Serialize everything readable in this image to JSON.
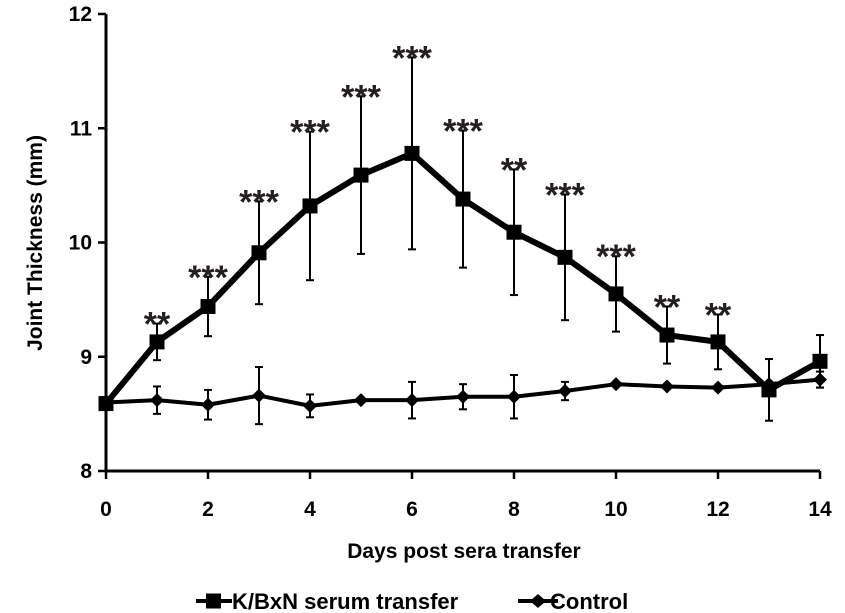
{
  "chart_data": {
    "type": "line",
    "xlabel": "Days post sera transfer",
    "ylabel": "Joint Thickness (mm)",
    "xlim": [
      0,
      14
    ],
    "ylim": [
      8,
      12
    ],
    "xticks": [
      "0",
      "2",
      "4",
      "6",
      "8",
      "10",
      "12",
      "14"
    ],
    "yticks": [
      "8",
      "9",
      "10",
      "11",
      "12"
    ],
    "grid": false,
    "legend_position": "bottom",
    "series": [
      {
        "name": "K/BxN serum transfer",
        "marker": "square",
        "color": "#000000",
        "x": [
          0,
          1,
          2,
          3,
          4,
          5,
          6,
          7,
          8,
          9,
          10,
          11,
          12,
          13,
          14
        ],
        "y": [
          8.59,
          9.13,
          9.44,
          9.91,
          10.32,
          10.59,
          10.78,
          10.38,
          10.09,
          9.87,
          9.55,
          9.19,
          9.13,
          8.71,
          8.96
        ],
        "err": [
          0,
          0.16,
          0.26,
          0.45,
          0.65,
          0.69,
          0.84,
          0.6,
          0.55,
          0.55,
          0.33,
          0.25,
          0.24,
          0.27,
          0.23
        ]
      },
      {
        "name": "Control",
        "marker": "diamond",
        "color": "#000000",
        "x": [
          0,
          1,
          2,
          3,
          4,
          5,
          6,
          7,
          8,
          9,
          10,
          11,
          12,
          13,
          14
        ],
        "y": [
          8.6,
          8.62,
          8.58,
          8.66,
          8.57,
          8.62,
          8.62,
          8.65,
          8.65,
          8.7,
          8.76,
          8.74,
          8.73,
          8.76,
          8.8
        ],
        "err": [
          0,
          0.12,
          0.13,
          0.25,
          0.1,
          0,
          0.16,
          0.11,
          0.19,
          0.08,
          0,
          0,
          0,
          0,
          0.07
        ]
      }
    ],
    "annotations": [
      {
        "x": 1,
        "text": "**"
      },
      {
        "x": 2,
        "text": "***"
      },
      {
        "x": 3,
        "text": "***"
      },
      {
        "x": 4,
        "text": "***"
      },
      {
        "x": 5,
        "text": "***"
      },
      {
        "x": 6,
        "text": "***"
      },
      {
        "x": 7,
        "text": "***"
      },
      {
        "x": 8,
        "text": "**"
      },
      {
        "x": 9,
        "text": "***"
      },
      {
        "x": 10,
        "text": "***"
      },
      {
        "x": 11,
        "text": "**"
      },
      {
        "x": 12,
        "text": "**"
      }
    ]
  }
}
